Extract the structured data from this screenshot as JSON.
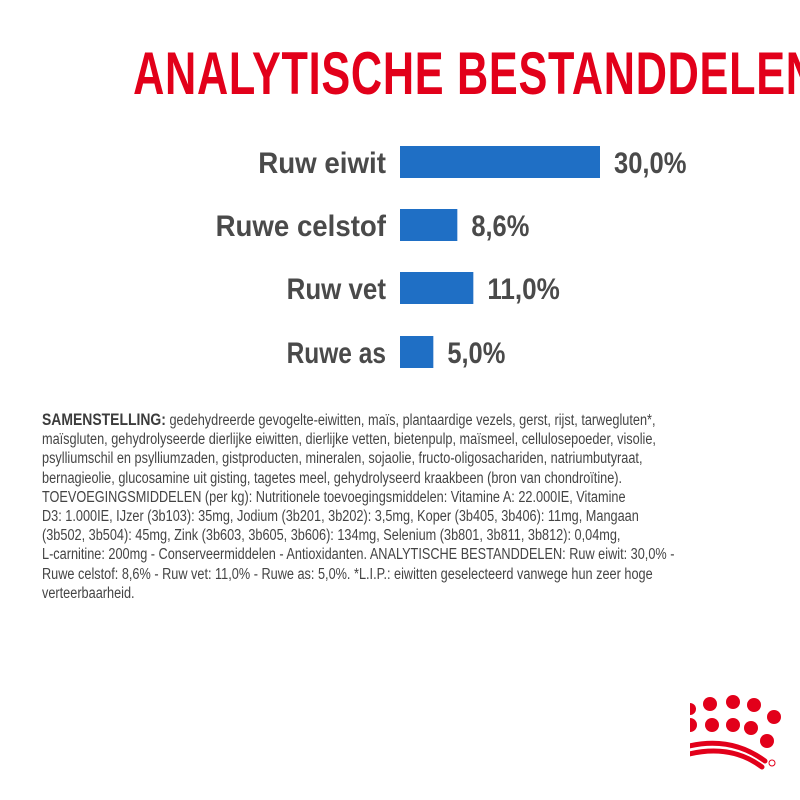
{
  "title": "ANALYTISCHE BESTANDDELEN",
  "colors": {
    "title": "#E2001A",
    "bar": "#1F6FC5",
    "text": "#4A4A4A",
    "logo": "#E2001A"
  },
  "chart_data": {
    "type": "bar",
    "orientation": "horizontal",
    "title": "ANALYTISCHE BESTANDDELEN",
    "categories": [
      "Ruw eiwit",
      "Ruwe celstof",
      "Ruw vet",
      "Ruwe as"
    ],
    "values": [
      30.0,
      8.6,
      11.0,
      5.0
    ],
    "data_labels": [
      "30,0%",
      "8,6%",
      "11,0%",
      "5,0%"
    ],
    "unit": "%",
    "grid": false
  },
  "composition": {
    "heading": "SAMENSTELLING:",
    "lines": [
      " gedehydreerde gevogelte-eiwitten, maïs, plantaardige vezels, gerst, rijst, tarwegluten*,",
      "maïsgluten, gehydrolyseerde dierlijke eiwitten, dierlijke vetten, bietenpulp, maïsmeel, cellulosepoeder, visolie,",
      "psylliumschil en psylliumzaden, gistproducten, mineralen, sojaolie, fructo-oligosachariden, natriumbutyraat,",
      "bernagieolie, glucosamine uit gisting, tagetes meel, gehydrolyseerd kraakbeen (bron van chondroïtine).",
      "TOEVOEGINGSMIDDELEN (per kg): Nutritionele toevoegingsmiddelen: Vitamine A: 22.000IE, Vitamine",
      "D3: 1.000IE, IJzer (3b103): 35mg, Jodium (3b201, 3b202): 3,5mg, Koper (3b405, 3b406): 11mg, Mangaan",
      "(3b502, 3b504): 45mg, Zink (3b603, 3b605, 3b606): 134mg, Selenium (3b801, 3b811, 3b812): 0,04mg,",
      "L-carnitine: 200mg - Conserveermiddelen - Antioxidanten. ANALYTISCHE BESTANDDELEN: Ruw eiwit: 30,0% -",
      "Ruwe celstof: 8,6% - Ruw vet: 11,0% - Ruwe as: 5,0%. *L.I.P.: eiwitten geselecteerd vanwege hun zeer hoge",
      "verteerbaarheid."
    ]
  },
  "logo": {
    "icon": "crown-logo-icon"
  }
}
